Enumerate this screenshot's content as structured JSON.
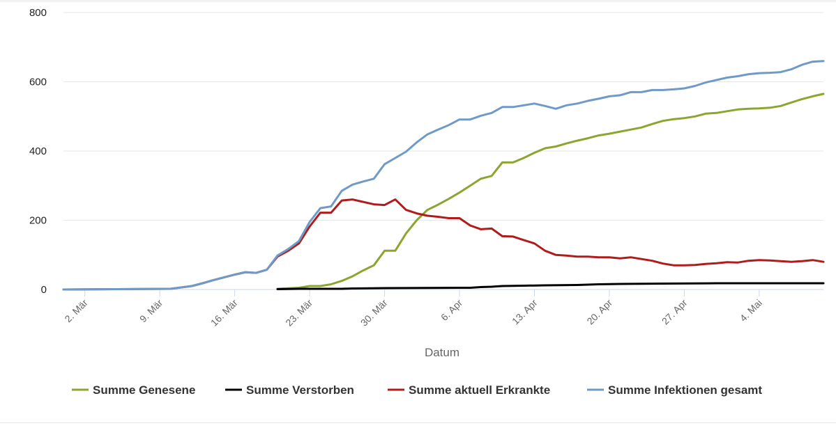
{
  "chart_data": {
    "type": "line",
    "xlabel": "Datum",
    "ylabel": "",
    "ylim": [
      0,
      800
    ],
    "yticks": [
      0,
      200,
      400,
      600,
      800
    ],
    "x_start": "2020-02-29",
    "x_end": "2020-05-10",
    "x_tick_labels": [
      {
        "date": "2020-03-02",
        "label": "2. Mär"
      },
      {
        "date": "2020-03-09",
        "label": "9. Mär"
      },
      {
        "date": "2020-03-16",
        "label": "16. Mär"
      },
      {
        "date": "2020-03-23",
        "label": "23. Mär"
      },
      {
        "date": "2020-03-30",
        "label": "30. Mär"
      },
      {
        "date": "2020-04-06",
        "label": "6. Apr"
      },
      {
        "date": "2020-04-13",
        "label": "13. Apr"
      },
      {
        "date": "2020-04-20",
        "label": "20. Apr"
      },
      {
        "date": "2020-04-27",
        "label": "27. Apr"
      },
      {
        "date": "2020-05-04",
        "label": "4. Mai"
      }
    ],
    "grid": true,
    "legend_position": "bottom",
    "series": [
      {
        "name": "Summe Genesene",
        "color": "#8aa62f",
        "points": [
          [
            "2020-03-20",
            2
          ],
          [
            "2020-03-22",
            5
          ],
          [
            "2020-03-23",
            10
          ],
          [
            "2020-03-24",
            10
          ],
          [
            "2020-03-25",
            15
          ],
          [
            "2020-03-26",
            25
          ],
          [
            "2020-03-27",
            38
          ],
          [
            "2020-03-28",
            55
          ],
          [
            "2020-03-29",
            70
          ],
          [
            "2020-03-30",
            112
          ],
          [
            "2020-03-31",
            112
          ],
          [
            "2020-04-01",
            162
          ],
          [
            "2020-04-02",
            200
          ],
          [
            "2020-04-03",
            230
          ],
          [
            "2020-04-04",
            245
          ],
          [
            "2020-04-05",
            262
          ],
          [
            "2020-04-06",
            280
          ],
          [
            "2020-04-07",
            300
          ],
          [
            "2020-04-08",
            320
          ],
          [
            "2020-04-09",
            328
          ],
          [
            "2020-04-10",
            367
          ],
          [
            "2020-04-11",
            367
          ],
          [
            "2020-04-12",
            380
          ],
          [
            "2020-04-13",
            395
          ],
          [
            "2020-04-14",
            408
          ],
          [
            "2020-04-15",
            413
          ],
          [
            "2020-04-16",
            422
          ],
          [
            "2020-04-17",
            430
          ],
          [
            "2020-04-18",
            437
          ],
          [
            "2020-04-19",
            445
          ],
          [
            "2020-04-20",
            450
          ],
          [
            "2020-04-21",
            456
          ],
          [
            "2020-04-22",
            462
          ],
          [
            "2020-04-23",
            468
          ],
          [
            "2020-04-24",
            478
          ],
          [
            "2020-04-25",
            487
          ],
          [
            "2020-04-26",
            492
          ],
          [
            "2020-04-27",
            495
          ],
          [
            "2020-04-28",
            500
          ],
          [
            "2020-04-29",
            508
          ],
          [
            "2020-04-30",
            510
          ],
          [
            "2020-05-01",
            515
          ],
          [
            "2020-05-02",
            520
          ],
          [
            "2020-05-03",
            522
          ],
          [
            "2020-05-04",
            523
          ],
          [
            "2020-05-05",
            525
          ],
          [
            "2020-05-06",
            530
          ],
          [
            "2020-05-07",
            540
          ],
          [
            "2020-05-08",
            550
          ],
          [
            "2020-05-09",
            558
          ],
          [
            "2020-05-10",
            565
          ]
        ]
      },
      {
        "name": "Summe Verstorben",
        "color": "#000000",
        "points": [
          [
            "2020-03-20",
            1
          ],
          [
            "2020-03-22",
            2
          ],
          [
            "2020-03-26",
            2
          ],
          [
            "2020-03-27",
            3
          ],
          [
            "2020-03-30",
            4
          ],
          [
            "2020-04-06",
            5
          ],
          [
            "2020-04-07",
            5
          ],
          [
            "2020-04-08",
            7
          ],
          [
            "2020-04-09",
            8
          ],
          [
            "2020-04-10",
            10
          ],
          [
            "2020-04-12",
            11
          ],
          [
            "2020-04-14",
            12
          ],
          [
            "2020-04-17",
            13
          ],
          [
            "2020-04-19",
            15
          ],
          [
            "2020-04-21",
            16
          ],
          [
            "2020-04-25",
            17
          ],
          [
            "2020-04-30",
            18
          ],
          [
            "2020-05-10",
            18
          ]
        ]
      },
      {
        "name": "Summe aktuell Erkrankte",
        "color": "#b01c1c",
        "points": [
          [
            "2020-02-29",
            0
          ],
          [
            "2020-03-05",
            1
          ],
          [
            "2020-03-10",
            2
          ],
          [
            "2020-03-11",
            6
          ],
          [
            "2020-03-12",
            10
          ],
          [
            "2020-03-13",
            18
          ],
          [
            "2020-03-14",
            27
          ],
          [
            "2020-03-15",
            35
          ],
          [
            "2020-03-16",
            43
          ],
          [
            "2020-03-17",
            50
          ],
          [
            "2020-03-18",
            48
          ],
          [
            "2020-03-19",
            57
          ],
          [
            "2020-03-20",
            95
          ],
          [
            "2020-03-21",
            112
          ],
          [
            "2020-03-22",
            133
          ],
          [
            "2020-03-23",
            182
          ],
          [
            "2020-03-24",
            222
          ],
          [
            "2020-03-25",
            222
          ],
          [
            "2020-03-26",
            257
          ],
          [
            "2020-03-27",
            260
          ],
          [
            "2020-03-28",
            253
          ],
          [
            "2020-03-29",
            246
          ],
          [
            "2020-03-30",
            244
          ],
          [
            "2020-03-31",
            260
          ],
          [
            "2020-04-01",
            230
          ],
          [
            "2020-04-02",
            220
          ],
          [
            "2020-04-03",
            213
          ],
          [
            "2020-04-04",
            210
          ],
          [
            "2020-04-05",
            206
          ],
          [
            "2020-04-06",
            206
          ],
          [
            "2020-04-07",
            185
          ],
          [
            "2020-04-08",
            174
          ],
          [
            "2020-04-09",
            176
          ],
          [
            "2020-04-10",
            154
          ],
          [
            "2020-04-11",
            153
          ],
          [
            "2020-04-12",
            143
          ],
          [
            "2020-04-13",
            133
          ],
          [
            "2020-04-14",
            112
          ],
          [
            "2020-04-15",
            100
          ],
          [
            "2020-04-16",
            98
          ],
          [
            "2020-04-17",
            95
          ],
          [
            "2020-04-18",
            95
          ],
          [
            "2020-04-19",
            93
          ],
          [
            "2020-04-20",
            93
          ],
          [
            "2020-04-21",
            90
          ],
          [
            "2020-04-22",
            93
          ],
          [
            "2020-04-23",
            88
          ],
          [
            "2020-04-24",
            83
          ],
          [
            "2020-04-25",
            75
          ],
          [
            "2020-04-26",
            70
          ],
          [
            "2020-04-27",
            70
          ],
          [
            "2020-04-28",
            71
          ],
          [
            "2020-04-29",
            74
          ],
          [
            "2020-04-30",
            76
          ],
          [
            "2020-05-01",
            79
          ],
          [
            "2020-05-02",
            78
          ],
          [
            "2020-05-03",
            83
          ],
          [
            "2020-05-04",
            85
          ],
          [
            "2020-05-05",
            84
          ],
          [
            "2020-05-06",
            82
          ],
          [
            "2020-05-07",
            80
          ],
          [
            "2020-05-08",
            82
          ],
          [
            "2020-05-09",
            85
          ],
          [
            "2020-05-10",
            80
          ]
        ]
      },
      {
        "name": "Summe Infektionen gesamt",
        "color": "#6f9ac8",
        "points": [
          [
            "2020-02-29",
            0
          ],
          [
            "2020-03-05",
            1
          ],
          [
            "2020-03-10",
            2
          ],
          [
            "2020-03-11",
            6
          ],
          [
            "2020-03-12",
            10
          ],
          [
            "2020-03-13",
            18
          ],
          [
            "2020-03-14",
            27
          ],
          [
            "2020-03-15",
            35
          ],
          [
            "2020-03-16",
            43
          ],
          [
            "2020-03-17",
            50
          ],
          [
            "2020-03-18",
            48
          ],
          [
            "2020-03-19",
            57
          ],
          [
            "2020-03-20",
            98
          ],
          [
            "2020-03-21",
            117
          ],
          [
            "2020-03-22",
            140
          ],
          [
            "2020-03-23",
            195
          ],
          [
            "2020-03-24",
            235
          ],
          [
            "2020-03-25",
            240
          ],
          [
            "2020-03-26",
            285
          ],
          [
            "2020-03-27",
            303
          ],
          [
            "2020-03-28",
            312
          ],
          [
            "2020-03-29",
            320
          ],
          [
            "2020-03-30",
            362
          ],
          [
            "2020-03-31",
            380
          ],
          [
            "2020-04-01",
            398
          ],
          [
            "2020-04-02",
            425
          ],
          [
            "2020-04-03",
            448
          ],
          [
            "2020-04-04",
            462
          ],
          [
            "2020-04-05",
            475
          ],
          [
            "2020-04-06",
            491
          ],
          [
            "2020-04-07",
            491
          ],
          [
            "2020-04-08",
            502
          ],
          [
            "2020-04-09",
            510
          ],
          [
            "2020-04-10",
            527
          ],
          [
            "2020-04-11",
            527
          ],
          [
            "2020-04-12",
            532
          ],
          [
            "2020-04-13",
            537
          ],
          [
            "2020-04-14",
            530
          ],
          [
            "2020-04-15",
            522
          ],
          [
            "2020-04-16",
            532
          ],
          [
            "2020-04-17",
            537
          ],
          [
            "2020-04-18",
            545
          ],
          [
            "2020-04-19",
            551
          ],
          [
            "2020-04-20",
            558
          ],
          [
            "2020-04-21",
            561
          ],
          [
            "2020-04-22",
            570
          ],
          [
            "2020-04-23",
            570
          ],
          [
            "2020-04-24",
            576
          ],
          [
            "2020-04-25",
            576
          ],
          [
            "2020-04-26",
            578
          ],
          [
            "2020-04-27",
            581
          ],
          [
            "2020-04-28",
            588
          ],
          [
            "2020-04-29",
            598
          ],
          [
            "2020-04-30",
            605
          ],
          [
            "2020-05-01",
            612
          ],
          [
            "2020-05-02",
            616
          ],
          [
            "2020-05-03",
            622
          ],
          [
            "2020-05-04",
            625
          ],
          [
            "2020-05-05",
            626
          ],
          [
            "2020-05-06",
            628
          ],
          [
            "2020-05-07",
            636
          ],
          [
            "2020-05-08",
            649
          ],
          [
            "2020-05-09",
            658
          ],
          [
            "2020-05-10",
            660
          ]
        ]
      }
    ]
  }
}
